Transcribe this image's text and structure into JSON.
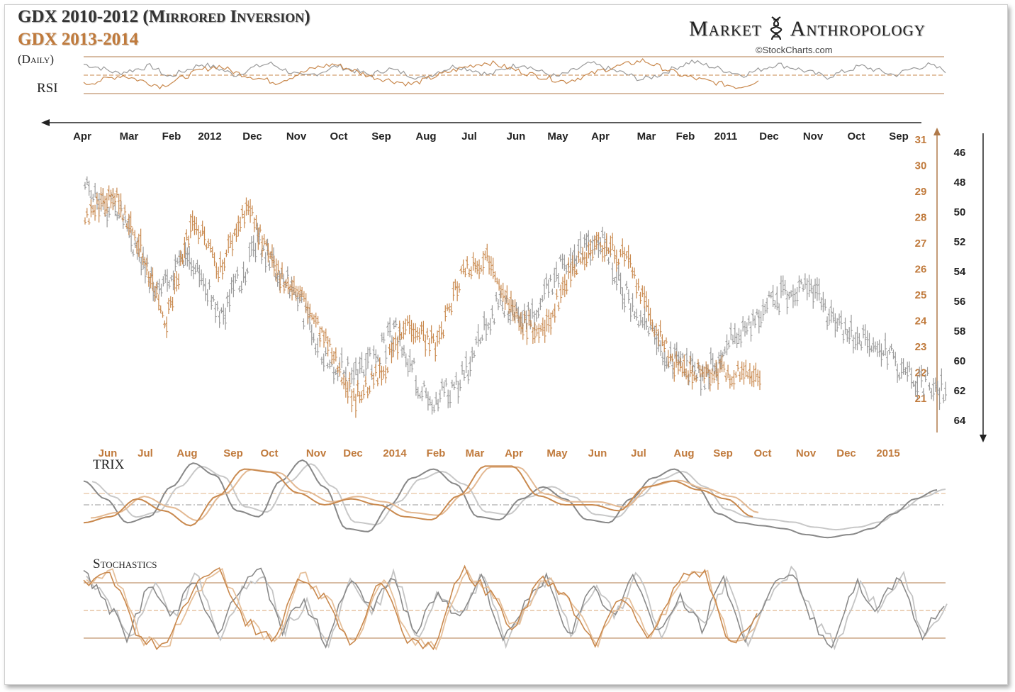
{
  "header": {
    "title_line1": "GDX 2010-2012 (Mirrored Inversion)",
    "title_line2": "GDX 2013-2014",
    "title_line3": "(Daily)",
    "brand_left": "Market",
    "brand_right": "Anthropology",
    "credit": "©StockCharts.com"
  },
  "colors": {
    "gdx_2010_2012": "#9a9a9a",
    "gdx_2013_2014": "#c9894e",
    "text_orange": "#c07a3c",
    "dark_text": "#222222"
  },
  "panels": {
    "rsi": "RSI",
    "trix": "TRIX",
    "stochastics": "Stochastics"
  },
  "chart_data": [
    {
      "type": "line",
      "name": "rsi_panel",
      "series": [
        {
          "name": "GDX 2010-2012 (Mirrored Inversion)",
          "values": [
            62,
            58,
            52,
            56,
            60,
            48,
            55,
            62,
            57,
            50,
            58,
            63,
            55,
            48,
            53,
            60,
            55,
            50,
            57,
            52,
            46,
            54,
            60,
            56,
            50,
            58,
            62,
            54,
            48,
            55,
            63,
            57,
            52,
            45,
            50,
            58,
            65,
            60,
            55,
            50,
            56,
            62,
            58,
            53,
            48,
            54,
            60,
            55,
            50,
            57,
            61,
            55
          ]
        },
        {
          "name": "GDX 2013-2014",
          "values": [
            40,
            45,
            50,
            44,
            38,
            46,
            55,
            60,
            52,
            47,
            42,
            50,
            58,
            62,
            55,
            48,
            44,
            40,
            47,
            54,
            60,
            64,
            58,
            52,
            47,
            43,
            49,
            56,
            61,
            66,
            58,
            50,
            45,
            41,
            37,
            44
          ]
        }
      ],
      "reference_levels": [
        70,
        50,
        30
      ]
    },
    {
      "type": "bar",
      "name": "price_ohlc",
      "top_axis_ticks": [
        "Apr",
        "Mar",
        "Feb",
        "2012",
        "Dec",
        "Nov",
        "Oct",
        "Sep",
        "Aug",
        "Jul",
        "Jun",
        "May",
        "Apr",
        "Mar",
        "Feb",
        "2011",
        "Dec",
        "Nov",
        "Oct",
        "Sep"
      ],
      "bottom_axis_ticks": [
        "Jun",
        "Jul",
        "Aug",
        "Sep",
        "Oct",
        "Nov",
        "Dec",
        "2014",
        "Feb",
        "Mar",
        "Apr",
        "May",
        "Jun",
        "Jul",
        "Aug",
        "Sep",
        "Oct",
        "Nov",
        "Dec",
        "2015"
      ],
      "left_inner_scale_2013_2014": [
        31,
        30,
        29,
        28,
        27,
        26,
        25,
        24,
        23,
        22,
        21
      ],
      "right_scale_2010_2012_inverted": [
        46,
        48,
        50,
        52,
        54,
        56,
        58,
        60,
        62,
        64
      ],
      "series": [
        {
          "name": "GDX 2010-2012 (Mirrored Inversion)",
          "y_axis": "inverted",
          "anchors": [
            [
              0,
              48.5
            ],
            [
              0.04,
              50
            ],
            [
              0.08,
              55
            ],
            [
              0.12,
              53
            ],
            [
              0.16,
              57
            ],
            [
              0.2,
              52
            ],
            [
              0.24,
              55
            ],
            [
              0.28,
              60
            ],
            [
              0.32,
              61
            ],
            [
              0.36,
              58
            ],
            [
              0.4,
              63
            ],
            [
              0.44,
              61
            ],
            [
              0.48,
              56
            ],
            [
              0.52,
              57
            ],
            [
              0.56,
              53
            ],
            [
              0.6,
              52
            ],
            [
              0.64,
              57
            ],
            [
              0.68,
              60
            ],
            [
              0.72,
              61
            ],
            [
              0.76,
              58
            ],
            [
              0.8,
              56
            ],
            [
              0.84,
              55
            ],
            [
              0.88,
              58
            ],
            [
              0.92,
              59
            ],
            [
              0.96,
              61
            ],
            [
              1.0,
              62
            ]
          ]
        },
        {
          "name": "GDX 2013-2014",
          "y_axis": "normal",
          "anchors": [
            [
              0,
              28
            ],
            [
              0.04,
              29
            ],
            [
              0.08,
              27
            ],
            [
              0.12,
              24
            ],
            [
              0.16,
              28
            ],
            [
              0.2,
              26
            ],
            [
              0.24,
              28.5
            ],
            [
              0.28,
              26
            ],
            [
              0.32,
              25
            ],
            [
              0.36,
              23
            ],
            [
              0.4,
              21
            ],
            [
              0.44,
              22
            ],
            [
              0.48,
              24
            ],
            [
              0.52,
              23
            ],
            [
              0.56,
              26
            ],
            [
              0.6,
              26.5
            ],
            [
              0.64,
              24
            ],
            [
              0.68,
              23.5
            ],
            [
              0.72,
              26
            ],
            [
              0.76,
              27
            ],
            [
              0.8,
              26.5
            ],
            [
              0.84,
              24
            ],
            [
              0.88,
              22
            ]
          ]
        }
      ]
    },
    {
      "type": "line",
      "name": "trix_panel",
      "series": [
        {
          "name": "GDX 2010-2012 (Mirrored Inversion)",
          "values": [
            0.8,
            0.2,
            -0.6,
            -0.4,
            0.6,
            1.4,
            1.0,
            -0.2,
            -0.4,
            0.8,
            1.5,
            0.6,
            -0.8,
            -0.9,
            0.0,
            0.9,
            1.2,
            0.7,
            -0.4,
            -0.5,
            0.2,
            0.6,
            0.2,
            -0.5,
            -0.6,
            0.2,
            0.9,
            1.2,
            0.6,
            -0.3,
            -0.6,
            -0.7,
            -0.8,
            -1.0,
            -1.1,
            -1.0,
            -0.8,
            -0.3,
            0.2,
            0.5
          ]
        },
        {
          "name": "GDX 2013-2014",
          "values": [
            -0.6,
            -0.4,
            0.2,
            -0.2,
            -0.7,
            0.3,
            1.2,
            1.1,
            0.4,
            0.0,
            0.2,
            0.0,
            -0.4,
            -0.5,
            0.3,
            1.3,
            1.3,
            0.3,
            0.0,
            0.0,
            -0.2,
            0.6,
            0.8,
            0.5,
            0.2,
            -0.4
          ]
        }
      ]
    },
    {
      "type": "line",
      "name": "stochastics_panel",
      "series": [
        {
          "name": "GDX 2010-2012 (Mirrored Inversion)",
          "values": [
            90,
            60,
            20,
            80,
            40,
            90,
            20,
            70,
            95,
            30,
            60,
            15,
            85,
            50,
            90,
            20,
            70,
            40,
            95,
            15,
            60,
            85,
            25,
            75,
            45,
            90,
            20,
            65,
            30,
            85,
            15,
            70,
            95,
            40,
            10,
            80,
            50,
            90,
            20,
            60
          ]
        },
        {
          "name": "GDX 2013-2014",
          "values": [
            80,
            95,
            20,
            10,
            70,
            95,
            40,
            15,
            90,
            60,
            10,
            85,
            20,
            10,
            95,
            70,
            30,
            90,
            60,
            15,
            70,
            20,
            80,
            95,
            10,
            40
          ]
        }
      ],
      "reference_levels": [
        80,
        50,
        20
      ]
    }
  ]
}
